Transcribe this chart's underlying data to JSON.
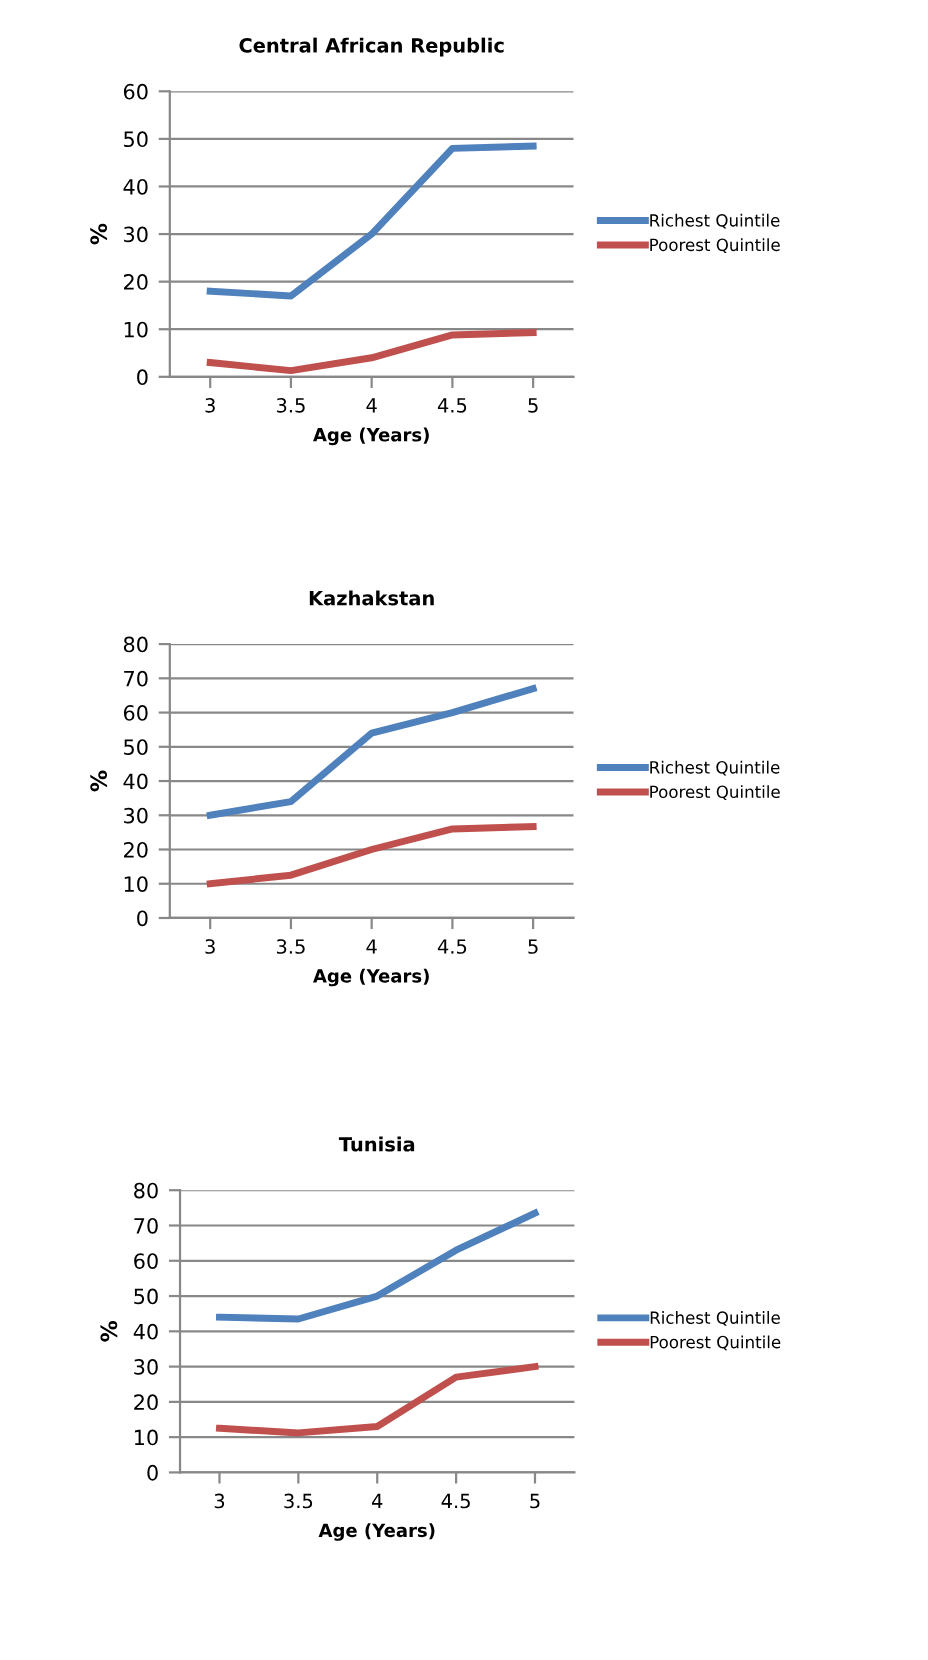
{
  "chart_data": [
    {
      "type": "line",
      "title": "Central African Republic",
      "xlabel": "Age (Years)",
      "ylabel": "%",
      "categories": [
        "3",
        "3.5",
        "4",
        "4.5",
        "5"
      ],
      "series": [
        {
          "name": "Richest Quintile",
          "color": "#4f81bd",
          "values": [
            18,
            17,
            30,
            48,
            48.5
          ]
        },
        {
          "name": "Poorest Quintile",
          "color": "#c0504d",
          "values": [
            3,
            1.3,
            4,
            8.8,
            9.3
          ]
        }
      ],
      "ylim": [
        0,
        60
      ],
      "yticks": [
        0,
        10,
        20,
        30,
        40,
        50,
        60
      ],
      "grid": "y",
      "legend": "right",
      "marker": "none",
      "line_style": "solid"
    },
    {
      "type": "line",
      "title": "Kazhakstan",
      "xlabel": "Age (Years)",
      "ylabel": "%",
      "categories": [
        "3",
        "3.5",
        "4",
        "4.5",
        "5"
      ],
      "series": [
        {
          "name": "Richest Quintile",
          "color": "#4f81bd",
          "values": [
            30,
            34,
            54,
            60,
            67
          ]
        },
        {
          "name": "Poorest Quintile",
          "color": "#c0504d",
          "values": [
            10,
            12.5,
            20,
            26,
            26.7
          ]
        }
      ],
      "ylim": [
        0,
        80
      ],
      "yticks": [
        0,
        10,
        20,
        30,
        40,
        50,
        60,
        70,
        80
      ],
      "grid": "y",
      "legend": "right",
      "marker": "none",
      "line_style": "solid"
    },
    {
      "type": "line",
      "title": "Tunisia",
      "xlabel": "Age (Years)",
      "ylabel": "%",
      "categories": [
        "3",
        "3.5",
        "4",
        "4.5",
        "5"
      ],
      "series": [
        {
          "name": "Richest Quintile",
          "color": "#4f81bd",
          "values": [
            44,
            43.5,
            50,
            63,
            73.5
          ]
        },
        {
          "name": "Poorest Quintile",
          "color": "#c0504d",
          "values": [
            12.5,
            11.2,
            13,
            27,
            30
          ]
        }
      ],
      "ylim": [
        0,
        80
      ],
      "yticks": [
        0,
        10,
        20,
        30,
        40,
        50,
        60,
        70,
        80
      ],
      "grid": "y",
      "legend": "right",
      "marker": "none",
      "line_style": "solid"
    }
  ]
}
